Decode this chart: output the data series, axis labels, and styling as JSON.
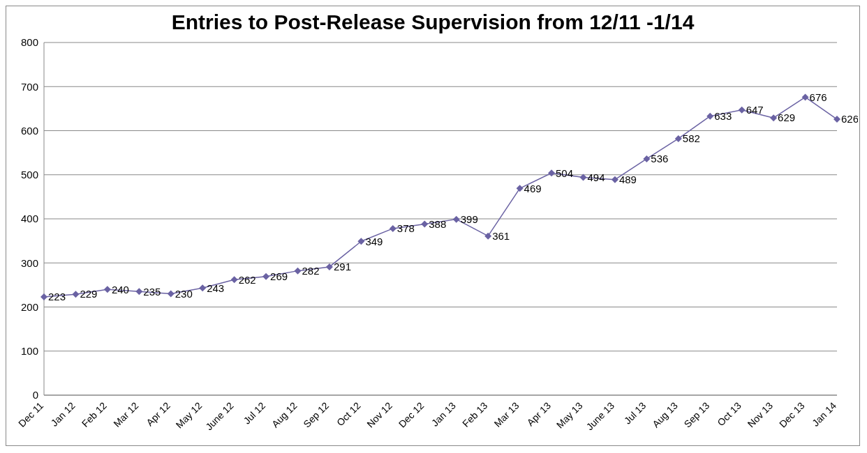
{
  "chart_data": {
    "type": "line",
    "title": "Entries to Post-Release Supervision from 12/11 -1/14",
    "categories": [
      "Dec 11",
      "Jan 12",
      "Feb 12",
      "Mar 12",
      "Apr 12",
      "May 12",
      "June 12",
      "Jul 12",
      "Aug 12",
      "Sep 12",
      "Oct 12",
      "Nov 12",
      "Dec 12",
      "Jan 13",
      "Feb 13",
      "Mar 13",
      "Apr 13",
      "May 13",
      "June 13",
      "Jul 13",
      "Aug 13",
      "Sep 13",
      "Oct 13",
      "Nov 13",
      "Dec 13",
      "Jan 14"
    ],
    "series": [
      {
        "color": "#6a62a3",
        "values": [
          223,
          229,
          240,
          235,
          230,
          243,
          262,
          269,
          282,
          291,
          349,
          378,
          388,
          399,
          361,
          469,
          504,
          494,
          489,
          536,
          582,
          633,
          647,
          629,
          676,
          626
        ]
      }
    ],
    "ylim": [
      0,
      800
    ],
    "yticks": [
      0,
      100,
      200,
      300,
      400,
      500,
      600,
      700,
      800
    ],
    "grid": "y",
    "marker": "diamond",
    "line_style": "solid",
    "data_labels": true,
    "legend": false
  }
}
